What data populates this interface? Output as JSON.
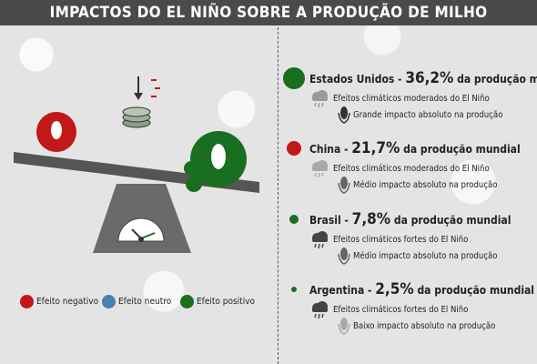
{
  "header": {
    "title": "IMPACTOS DO EL NIÑO SOBRE A PRODUÇÃO DE MILHO"
  },
  "legend": [
    {
      "label": "Efeito negativo"
    },
    {
      "label": "Efeito neutro"
    },
    {
      "label": "Efeito positivo"
    }
  ],
  "countries": [
    {
      "name": "Estados Unidos -",
      "share": "36,2%",
      "suffix": "da produção mundial",
      "climate": "Efeitos climáticos moderados do El Niño",
      "impact": "Grande impacto absoluto na produção"
    },
    {
      "name": "China -",
      "share": "21,7%",
      "suffix": "da produção mundial",
      "climate": "Efeitos climáticos moderados do El Niño",
      "impact": "Médio impacto absoluto na produção"
    },
    {
      "name": "Brasil -",
      "share": "7,8%",
      "suffix": "da produção mundial",
      "climate": "Efeitos climáticos fortes do El Niño",
      "impact": "Médio impacto absoluto na produção"
    },
    {
      "name": "Argentina -",
      "share": "2,5%",
      "suffix": "da produção mundial",
      "climate": "Efeitos climáticos fortes do El Niño",
      "impact": "Baixo impacto absoluto na produção"
    }
  ]
}
